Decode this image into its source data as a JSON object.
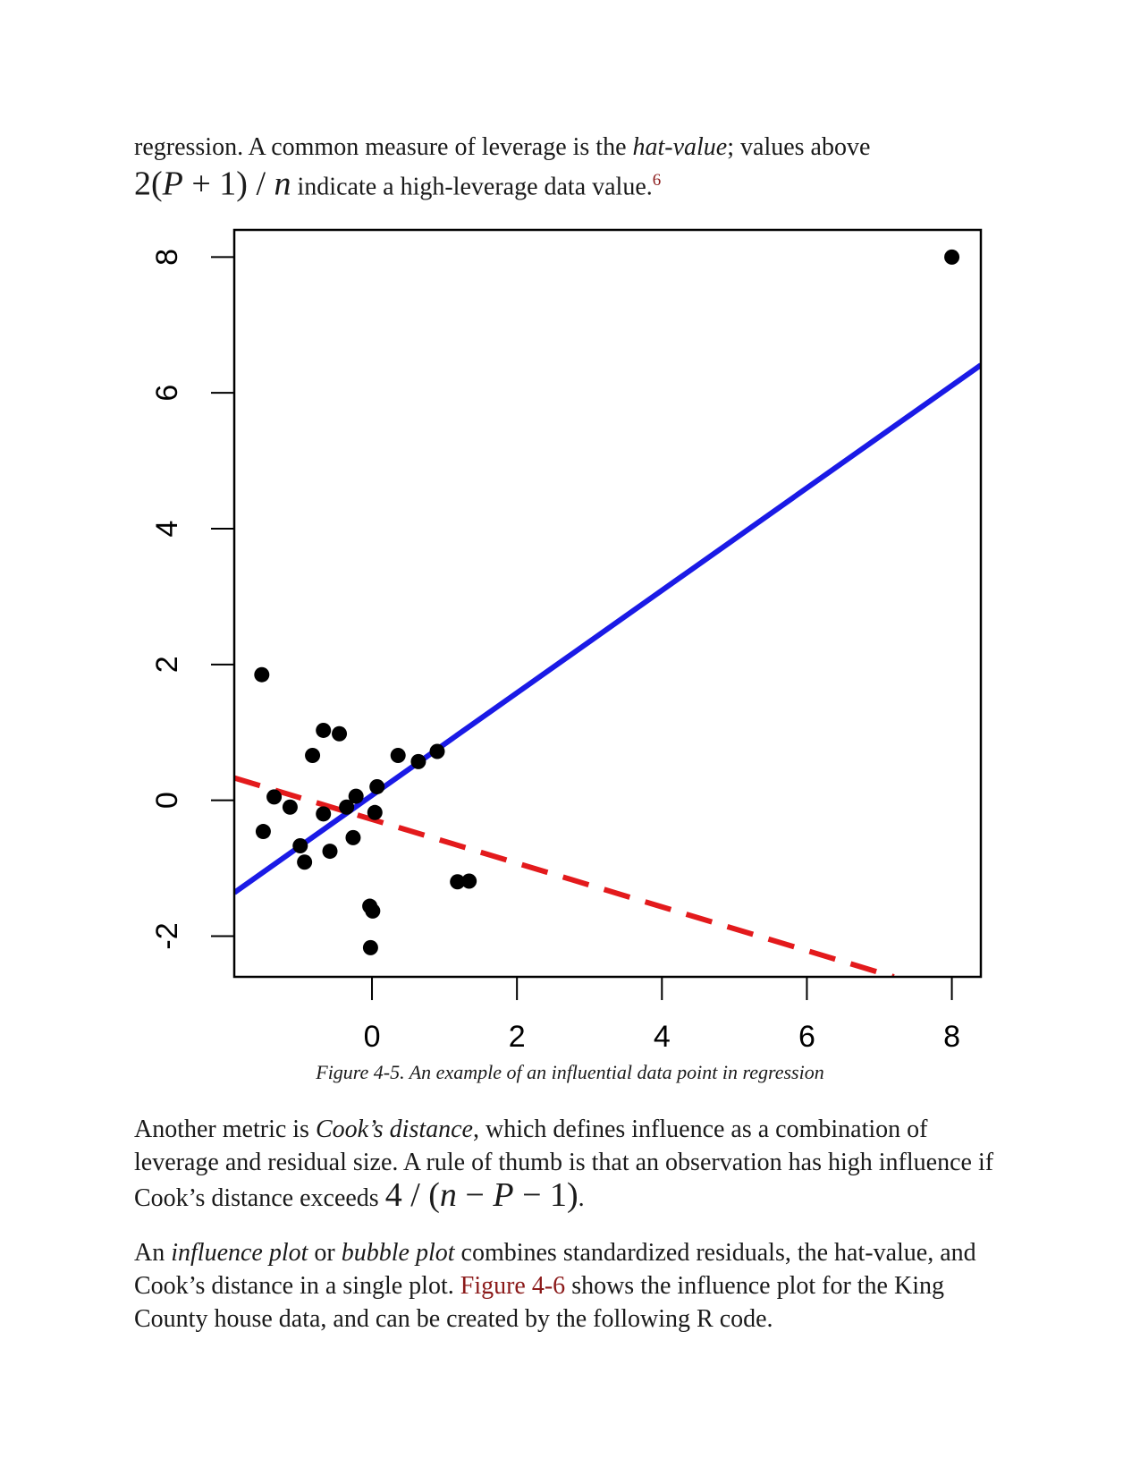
{
  "intro": {
    "line1_a": "regression. A common measure of leverage is the ",
    "line1_em": "hat-value",
    "line1_b": "; values above",
    "formula1_a": "2(",
    "formula1_P": "P",
    "formula1_b": " + 1) / ",
    "formula1_n": "n",
    "line2": " indicate a high-leverage data value.",
    "footnote": "6"
  },
  "chart_data": {
    "type": "scatter",
    "title": "",
    "xlabel": "",
    "ylabel": "",
    "xlim": [
      -1.9,
      8.4
    ],
    "ylim": [
      -2.6,
      8.4
    ],
    "x_ticks": [
      "0",
      "2",
      "4",
      "6",
      "8"
    ],
    "y_ticks": [
      "-2",
      "0",
      "2",
      "4",
      "6",
      "8"
    ],
    "x_tick_values": [
      0,
      2,
      4,
      6,
      8
    ],
    "y_tick_values": [
      -2,
      0,
      2,
      4,
      6,
      8
    ],
    "grid": false,
    "points": [
      {
        "x": -1.52,
        "y": 1.85
      },
      {
        "x": -1.5,
        "y": -0.46
      },
      {
        "x": -1.35,
        "y": 0.05
      },
      {
        "x": -1.13,
        "y": -0.1
      },
      {
        "x": -0.99,
        "y": -0.67
      },
      {
        "x": -0.93,
        "y": -0.91
      },
      {
        "x": -0.82,
        "y": 0.66
      },
      {
        "x": -0.67,
        "y": 1.03
      },
      {
        "x": -0.67,
        "y": -0.2
      },
      {
        "x": -0.58,
        "y": -0.75
      },
      {
        "x": -0.45,
        "y": 0.98
      },
      {
        "x": -0.35,
        "y": -0.1
      },
      {
        "x": -0.26,
        "y": -0.55
      },
      {
        "x": -0.22,
        "y": 0.06
      },
      {
        "x": -0.03,
        "y": -1.56
      },
      {
        "x": -0.02,
        "y": -2.17
      },
      {
        "x": 0.01,
        "y": -1.63
      },
      {
        "x": 0.04,
        "y": -0.18
      },
      {
        "x": 0.07,
        "y": 0.2
      },
      {
        "x": 0.36,
        "y": 0.66
      },
      {
        "x": 0.64,
        "y": 0.57
      },
      {
        "x": 0.9,
        "y": 0.72
      },
      {
        "x": 1.18,
        "y": -1.2
      },
      {
        "x": 1.34,
        "y": -1.19
      },
      {
        "x": 8.0,
        "y": 8.0
      }
    ],
    "series": [
      {
        "type": "line",
        "style": "solid",
        "color": "#1a1ae6",
        "x": [
          -1.9,
          8.4
        ],
        "y": [
          -1.36,
          6.41
        ]
      },
      {
        "type": "line",
        "style": "dashed",
        "color": "#e31a1c",
        "x": [
          -1.9,
          7.2
        ],
        "y": [
          0.33,
          -2.6
        ]
      }
    ]
  },
  "colors": {
    "fit_line": "#1a1ae6",
    "fit_without_outlier": "#e31a1c",
    "points": "#000000",
    "link": "#8b1a1a"
  },
  "caption": "Figure 4-5. An example of an influential data point in regression",
  "para2": {
    "a": "Another metric is ",
    "em": "Cook’s distance",
    "b": ", which defines influence as a combination of leverage and residual size. A rule of thumb is that an observation has high influence if Cook’s distance exceeds ",
    "formula_a": "4 / (",
    "formula_n": "n",
    "formula_b": " − ",
    "formula_P": "P",
    "formula_c": " − 1)",
    "end": "."
  },
  "para3": {
    "a": "An ",
    "em1": "influence plot",
    "b": " or ",
    "em2": "bubble plot",
    "c": " combines standardized residuals, the hat-value, and Cook’s distance in a single plot. ",
    "link": "Figure 4-6",
    "d": " shows the influence plot for the King County house data, and can be created by the following R code."
  }
}
